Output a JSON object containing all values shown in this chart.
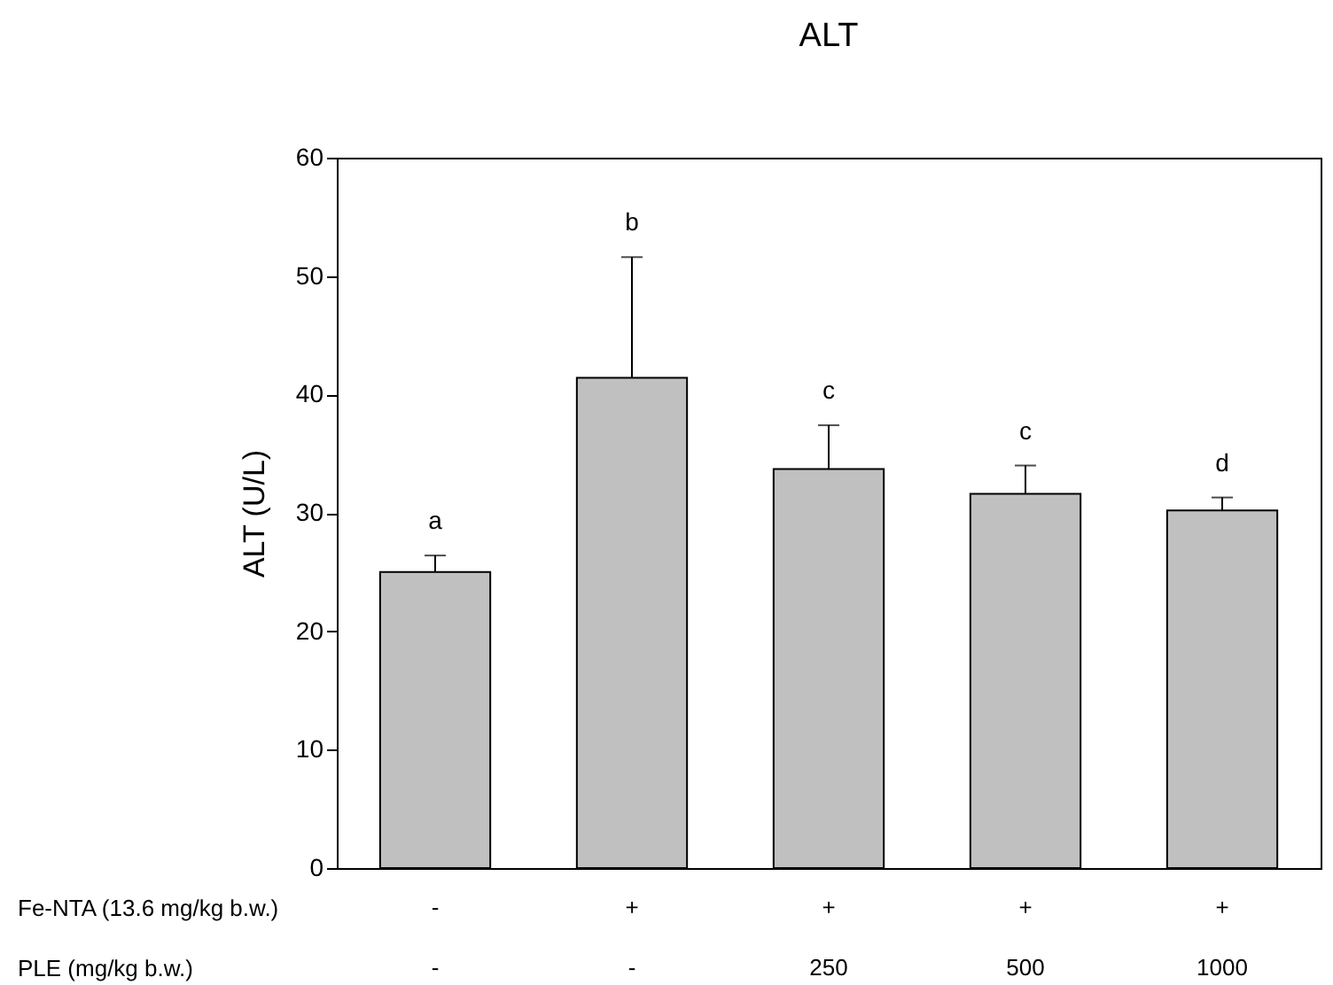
{
  "chart_data": {
    "type": "bar",
    "title": "ALT",
    "ylabel": "ALT (U/L)",
    "categories": [
      "-\n-",
      "+\n-",
      "+\n250",
      "+\n500",
      "+\n1000"
    ],
    "values": [
      25.0,
      41.4,
      33.7,
      31.6,
      30.2
    ],
    "color": "#c0c0c0",
    "errors": [
      [
        25.0,
        26.4
      ],
      [
        41.4,
        51.6
      ],
      [
        33.7,
        37.4
      ],
      [
        31.6,
        34.0
      ],
      [
        30.2,
        31.3
      ]
    ],
    "annotations": [
      "Fe-NTA (13.6 mg/kg b.w.)",
      "PLE (mg/kg b.w.)",
      {
        "text": "a",
        "x": "-\n-",
        "y": 26.4
      },
      {
        "text": "b",
        "x": "+\n-",
        "y": 51.6
      },
      {
        "text": "c",
        "x": "+\n250",
        "y": 37.4
      },
      {
        "text": "c",
        "x": "+\n500",
        "y": 34.0
      },
      {
        "text": "d",
        "x": "+\n1000",
        "y": 31.3
      }
    ],
    "ylim": [
      0,
      60
    ],
    "yticks": [
      0,
      10,
      20,
      30,
      40,
      50,
      60
    ],
    "grid": false
  }
}
